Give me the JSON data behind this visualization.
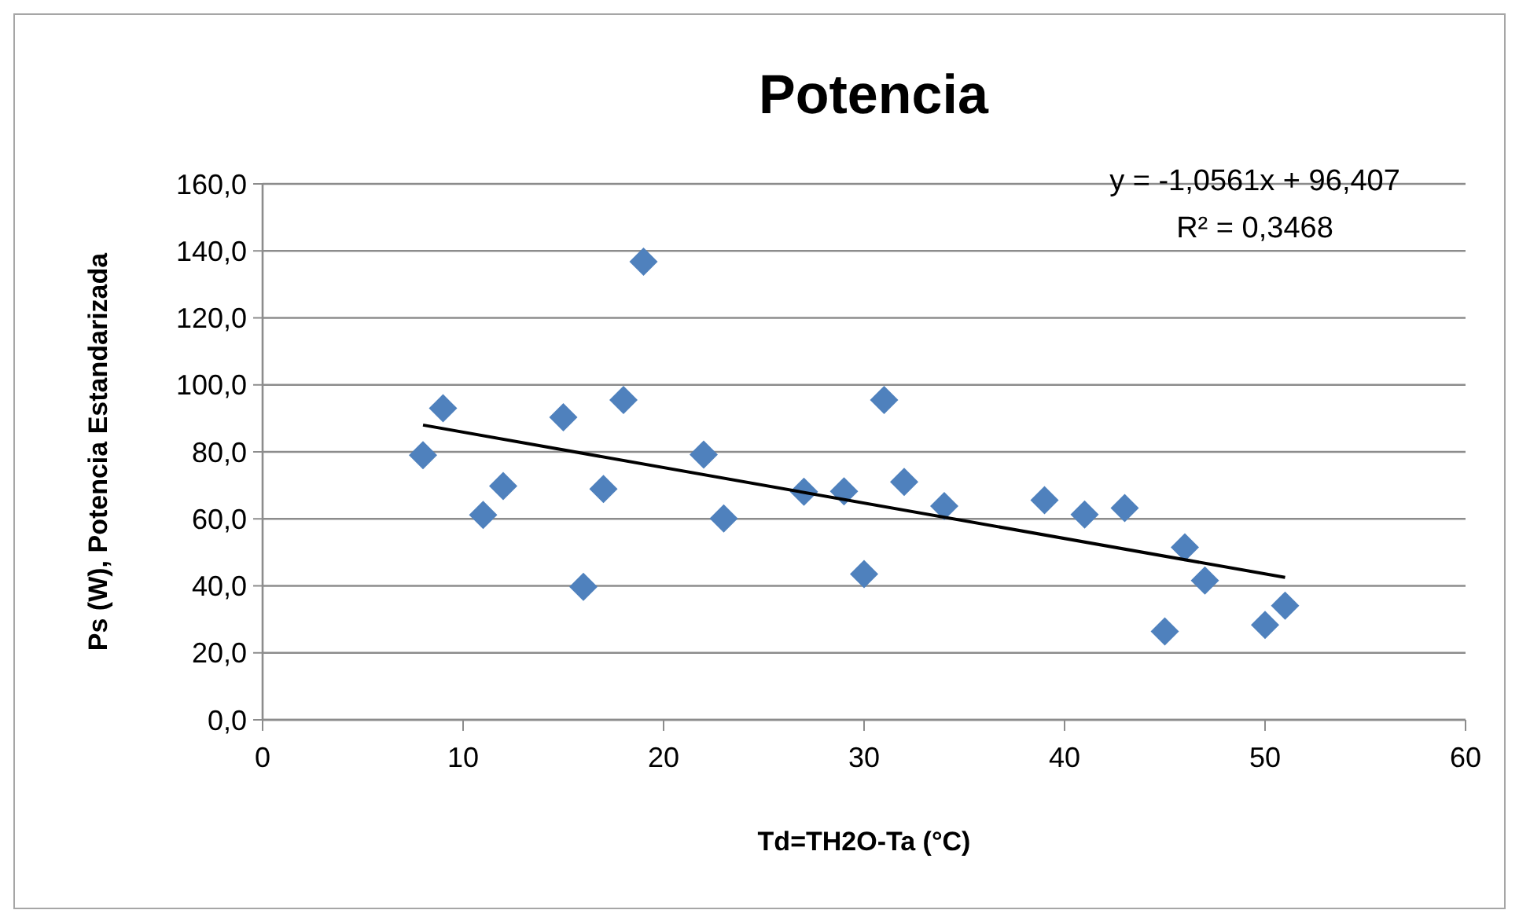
{
  "chart_data": {
    "type": "scatter",
    "title": "Potencia",
    "xlabel": "Td=TH2O-Ta (°C)",
    "ylabel": "Ps (W), Potencia Estandarizada",
    "xlim": [
      0,
      60
    ],
    "xticks": [
      0,
      10,
      20,
      30,
      40,
      50,
      60
    ],
    "ylim": [
      0,
      160
    ],
    "yticks": [
      {
        "value": 0,
        "label": "0,0"
      },
      {
        "value": 20,
        "label": "20,0"
      },
      {
        "value": 40,
        "label": "40,0"
      },
      {
        "value": 60,
        "label": "60,0"
      },
      {
        "value": 80,
        "label": "80,0"
      },
      {
        "value": 100,
        "label": "100,0"
      },
      {
        "value": 120,
        "label": "120,0"
      },
      {
        "value": 140,
        "label": "140,0"
      },
      {
        "value": 160,
        "label": "160,0"
      }
    ],
    "grid": "y",
    "marker": "diamond",
    "annotations": [
      "y = -1,0561x + 96,407",
      "R² = 0,3468"
    ],
    "series": [
      {
        "color": "#4f81bd",
        "x": [
          8,
          9,
          11,
          12,
          15,
          16,
          17,
          18,
          19,
          22,
          23,
          27,
          29,
          30,
          31,
          32,
          34,
          39,
          41,
          43,
          45,
          46,
          47,
          50,
          51
        ],
        "values": [
          79.0,
          93.0,
          61.2,
          69.8,
          90.3,
          39.7,
          68.9,
          95.5,
          136.8,
          79.2,
          60.1,
          68.1,
          68.2,
          43.5,
          95.5,
          71.0,
          63.8,
          65.6,
          61.3,
          63.2,
          26.4,
          51.5,
          41.6,
          28.3,
          34.1
        ]
      },
      {
        "type": "line",
        "color": "#000000",
        "marker": "none",
        "x": [
          8,
          51
        ],
        "values": [
          88.0,
          42.5
        ]
      }
    ]
  }
}
